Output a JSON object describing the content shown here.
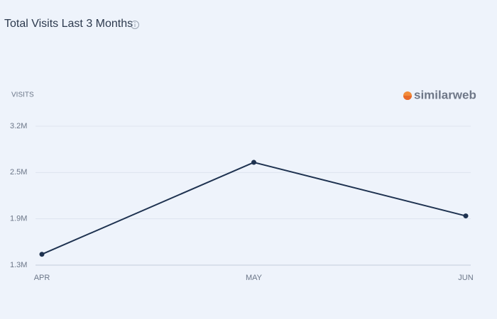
{
  "chart_data": {
    "type": "line",
    "title": "Total Visits Last 3 Months",
    "y_label": "VISITS",
    "watermark": "similarweb",
    "categories": [
      "APR",
      "MAY",
      "JUN"
    ],
    "series": [
      {
        "name": "Visits",
        "color": "#1e3250",
        "values": [
          1410000,
          2680000,
          1940000
        ]
      }
    ],
    "ylim": [
      1260000,
      3180000
    ],
    "yticks": [
      {
        "value": 1260000,
        "label": "1.3M"
      },
      {
        "value": 1900000,
        "label": "1.9M"
      },
      {
        "value": 2540000,
        "label": "2.5M"
      },
      {
        "value": 3180000,
        "label": "3.2M"
      }
    ],
    "grid": true
  }
}
